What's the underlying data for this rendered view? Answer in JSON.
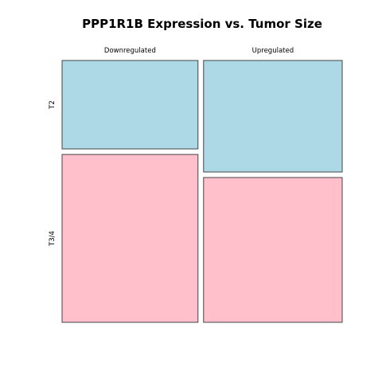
{
  "chart_data": {
    "type": "mosaic",
    "title": "PPP1R1B Expression vs. Tumor Size",
    "columns": [
      "Downregulated",
      "Upregulated"
    ],
    "rows": [
      "T2",
      "T3/4"
    ],
    "column_proportions": [
      0.495,
      0.505
    ],
    "row_proportions_within_column": [
      [
        0.345,
        0.655
      ],
      [
        0.435,
        0.565
      ]
    ],
    "colors": {
      "T2": "#add8e6",
      "T3/4": "#ffc0cb"
    },
    "border_color": "#444444"
  }
}
